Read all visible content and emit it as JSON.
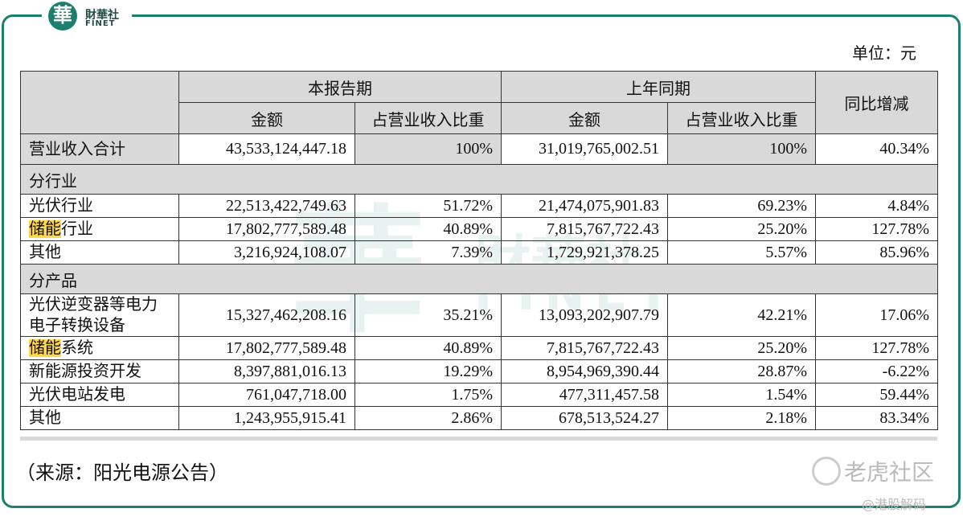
{
  "header": {
    "logo_mark": "華",
    "logo_name": "財華社",
    "logo_sub": "FINET"
  },
  "unit": "单位：元",
  "table": {
    "header_groups": [
      "本报告期",
      "上年同期"
    ],
    "yoy_header": "同比增减",
    "subheaders": [
      "金额",
      "占营业收入比重",
      "金额",
      "占营业收入比重"
    ],
    "rows": [
      {
        "label": "营业收入合计",
        "cells": [
          "43,533,124,447.18",
          "100%",
          "31,019,765,002.51",
          "100%",
          "40.34%"
        ]
      },
      {
        "section": "分行业"
      },
      {
        "label": "光伏行业",
        "cells": [
          "22,513,422,749.63",
          "51.72%",
          "21,474,075,901.83",
          "69.23%",
          "4.84%"
        ]
      },
      {
        "highlight": "储能",
        "label": "行业",
        "cells": [
          "17,802,777,589.48",
          "40.89%",
          "7,815,767,722.43",
          "25.20%",
          "127.78%"
        ]
      },
      {
        "label": "其他",
        "cells": [
          "3,216,924,108.07",
          "7.39%",
          "1,729,921,378.25",
          "5.57%",
          "85.96%"
        ]
      },
      {
        "section": "分产品"
      },
      {
        "label": "光伏逆变器等电力电子转换设备",
        "cells": [
          "15,327,462,208.16",
          "35.21%",
          "13,093,202,907.79",
          "42.21%",
          "17.06%"
        ]
      },
      {
        "highlight": "储能",
        "label": "系统",
        "cells": [
          "17,802,777,589.48",
          "40.89%",
          "7,815,767,722.43",
          "25.20%",
          "127.78%"
        ]
      },
      {
        "label": "新能源投资开发",
        "cells": [
          "8,397,881,016.13",
          "19.29%",
          "8,954,969,390.44",
          "28.87%",
          "-6.22%"
        ]
      },
      {
        "label": "光伏电站发电",
        "cells": [
          "761,047,718.00",
          "1.75%",
          "477,311,457.58",
          "1.54%",
          "59.44%"
        ]
      },
      {
        "label": "其他",
        "cells": [
          "1,243,955,915.41",
          "2.86%",
          "678,513,524.27",
          "2.18%",
          "83.34%"
        ]
      }
    ]
  },
  "source": "（来源：阳光电源公告）",
  "watermark": {
    "brand": "老虎社区",
    "author": "@港股解码"
  }
}
